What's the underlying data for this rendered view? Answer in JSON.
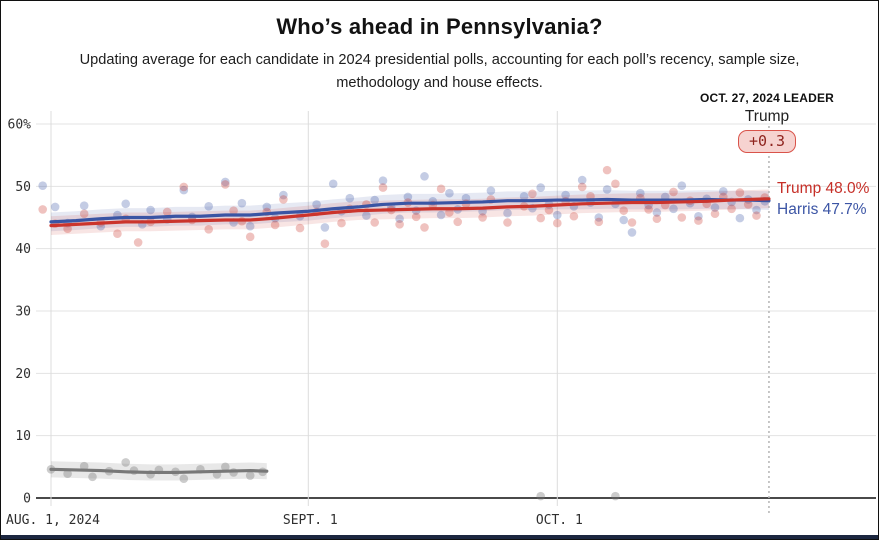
{
  "header": {
    "title": "Who’s ahead in Pennsylvania?",
    "subtitle": "Updating average for each candidate in 2024 presidential polls, accounting for each poll’s recency, sample size, methodology and house effects."
  },
  "leader": {
    "heading": "OCT. 27, 2024 LEADER",
    "name": "Trump",
    "margin": "+0.3"
  },
  "end_labels": {
    "trump": {
      "text": "Trump 48.0%"
    },
    "harris": {
      "text": "Harris 47.7%"
    }
  },
  "colors": {
    "trump": "#cb342c",
    "harris": "#3a55a4",
    "other": "#787878",
    "trump_band": "rgba(203,52,44,0.13)",
    "harris_band": "rgba(58,85,164,0.13)",
    "other_band": "rgba(120,120,120,0.17)",
    "grid": "#e3e3e3",
    "axis": "#4a4a4a",
    "marker": "#b9b9b9",
    "pill_bg": "#f6d3d0",
    "pill_border": "#d9534a",
    "pill_text": "#8f241e",
    "bottom_bar": "#1c2740"
  },
  "chart_data": {
    "type": "line",
    "title": "Who’s ahead in Pennsylvania?",
    "x_unit": "days since Aug 1, 2024",
    "ylim": [
      0,
      62
    ],
    "grid": true,
    "latest_date": "Oct. 27, 2024",
    "marker_day": 86.5,
    "x_ticks": [
      {
        "day": 0,
        "label": "AUG. 1, 2024"
      },
      {
        "day": 31,
        "label": "SEPT. 1"
      },
      {
        "day": 61,
        "label": "OCT. 1"
      }
    ],
    "y_ticks": [
      {
        "v": 0,
        "label": "0"
      },
      {
        "v": 10,
        "label": "10"
      },
      {
        "v": 20,
        "label": "20"
      },
      {
        "v": 30,
        "label": "30"
      },
      {
        "v": 40,
        "label": "40"
      },
      {
        "v": 50,
        "label": "50"
      },
      {
        "v": 60,
        "label": "60%"
      }
    ],
    "series": [
      {
        "name": "Other",
        "color_key": "other",
        "band": 1.3,
        "final_value": null,
        "days": [
          0,
          3,
          6,
          9,
          12,
          15,
          18,
          21,
          24,
          26
        ],
        "values": [
          4.6,
          4.5,
          4.4,
          4.2,
          4.1,
          4.1,
          4.2,
          4.3,
          4.4,
          4.3
        ],
        "dots": [
          [
            0,
            4.6
          ],
          [
            2,
            3.9
          ],
          [
            4,
            5.1
          ],
          [
            5,
            3.4
          ],
          [
            7,
            4.3
          ],
          [
            9,
            5.7
          ],
          [
            10,
            4.4
          ],
          [
            12,
            3.8
          ],
          [
            13,
            4.5
          ],
          [
            15,
            4.2
          ],
          [
            16,
            3.1
          ],
          [
            18,
            4.6
          ],
          [
            20,
            3.8
          ],
          [
            21,
            5.0
          ],
          [
            22,
            4.1
          ],
          [
            24,
            3.6
          ],
          [
            25.5,
            4.2
          ],
          [
            59,
            0.3
          ],
          [
            68,
            0.3
          ]
        ]
      },
      {
        "name": "Harris",
        "color_key": "harris",
        "band": 1.5,
        "final_value": 47.7,
        "days": [
          0,
          3,
          6,
          9,
          12,
          15,
          18,
          21,
          24,
          27,
          31,
          34,
          37,
          40,
          43,
          46,
          49,
          52,
          55,
          58,
          61,
          64,
          67,
          70,
          73,
          76,
          79,
          82,
          84,
          86.5
        ],
        "values": [
          44.3,
          44.5,
          44.8,
          45.0,
          45.0,
          45.2,
          45.2,
          45.4,
          45.4,
          45.7,
          46.0,
          46.4,
          46.7,
          47.1,
          47.3,
          47.3,
          47.4,
          47.5,
          47.7,
          47.7,
          47.8,
          47.8,
          47.9,
          47.8,
          47.8,
          47.8,
          47.9,
          47.8,
          47.8,
          47.7
        ],
        "dots": [
          [
            -1,
            50.1
          ],
          [
            0.5,
            46.7
          ],
          [
            2,
            44.1
          ],
          [
            4,
            46.9
          ],
          [
            6,
            43.6
          ],
          [
            8,
            45.4
          ],
          [
            9,
            47.2
          ],
          [
            11,
            43.9
          ],
          [
            12,
            46.2
          ],
          [
            14,
            44.7
          ],
          [
            16,
            49.4
          ],
          [
            17,
            45.1
          ],
          [
            19,
            46.8
          ],
          [
            21,
            50.7
          ],
          [
            22,
            44.2
          ],
          [
            23,
            47.3
          ],
          [
            24,
            43.6
          ],
          [
            26,
            46.7
          ],
          [
            27,
            44.9
          ],
          [
            28,
            48.6
          ],
          [
            30,
            45.2
          ],
          [
            32,
            47.1
          ],
          [
            33,
            43.4
          ],
          [
            34,
            50.4
          ],
          [
            35,
            46.0
          ],
          [
            36,
            48.1
          ],
          [
            38,
            45.3
          ],
          [
            39,
            47.8
          ],
          [
            40,
            50.9
          ],
          [
            41,
            46.6
          ],
          [
            42,
            44.8
          ],
          [
            43,
            48.3
          ],
          [
            44,
            46.1
          ],
          [
            45,
            51.6
          ],
          [
            46,
            47.6
          ],
          [
            47,
            45.4
          ],
          [
            48,
            48.9
          ],
          [
            49,
            46.3
          ],
          [
            50,
            48.1
          ],
          [
            52,
            46.0
          ],
          [
            53,
            49.3
          ],
          [
            55,
            45.7
          ],
          [
            57,
            48.4
          ],
          [
            58,
            46.5
          ],
          [
            59,
            49.8
          ],
          [
            60,
            47.1
          ],
          [
            61,
            45.4
          ],
          [
            62,
            48.6
          ],
          [
            63,
            46.8
          ],
          [
            64,
            51.0
          ],
          [
            65,
            47.4
          ],
          [
            66,
            45.0
          ],
          [
            67,
            49.5
          ],
          [
            68,
            47.2
          ],
          [
            69,
            44.6
          ],
          [
            70,
            42.6
          ],
          [
            71,
            48.9
          ],
          [
            72,
            47.0
          ],
          [
            73,
            45.8
          ],
          [
            74,
            48.3
          ],
          [
            75,
            46.4
          ],
          [
            76,
            50.1
          ],
          [
            77,
            47.3
          ],
          [
            78,
            45.2
          ],
          [
            79,
            48.0
          ],
          [
            80,
            46.6
          ],
          [
            81,
            49.2
          ],
          [
            82,
            47.5
          ],
          [
            83,
            44.9
          ],
          [
            84,
            47.9
          ],
          [
            85,
            46.2
          ],
          [
            86,
            47.6
          ]
        ]
      },
      {
        "name": "Trump",
        "color_key": "trump",
        "band": 1.5,
        "final_value": 48.0,
        "days": [
          0,
          3,
          6,
          9,
          12,
          15,
          18,
          21,
          24,
          27,
          31,
          34,
          37,
          40,
          43,
          46,
          49,
          52,
          55,
          58,
          61,
          64,
          67,
          70,
          73,
          76,
          79,
          82,
          84,
          86.5
        ],
        "values": [
          43.7,
          43.9,
          44.1,
          44.3,
          44.3,
          44.4,
          44.5,
          44.6,
          44.6,
          44.9,
          45.4,
          45.8,
          46.1,
          46.2,
          46.3,
          46.4,
          46.4,
          46.5,
          46.7,
          46.8,
          47.0,
          47.2,
          47.3,
          47.4,
          47.4,
          47.5,
          47.6,
          47.8,
          47.9,
          48.0
        ],
        "dots": [
          [
            -1,
            46.3
          ],
          [
            0.5,
            44.0
          ],
          [
            2,
            43.2
          ],
          [
            4,
            45.6
          ],
          [
            6,
            44.2
          ],
          [
            8,
            42.4
          ],
          [
            9,
            44.8
          ],
          [
            10.5,
            41.0
          ],
          [
            12,
            44.3
          ],
          [
            14,
            45.9
          ],
          [
            16,
            49.9
          ],
          [
            17,
            44.6
          ],
          [
            19,
            43.1
          ],
          [
            21,
            50.3
          ],
          [
            22,
            46.1
          ],
          [
            23,
            44.4
          ],
          [
            24,
            41.9
          ],
          [
            26,
            45.9
          ],
          [
            27,
            43.8
          ],
          [
            28,
            47.9
          ],
          [
            30,
            43.3
          ],
          [
            32,
            45.9
          ],
          [
            33,
            40.8
          ],
          [
            35,
            44.1
          ],
          [
            36,
            46.4
          ],
          [
            38,
            47.1
          ],
          [
            39,
            44.2
          ],
          [
            40,
            49.8
          ],
          [
            41,
            46.2
          ],
          [
            42,
            43.9
          ],
          [
            43,
            47.4
          ],
          [
            44,
            45.1
          ],
          [
            45,
            43.4
          ],
          [
            46,
            47.0
          ],
          [
            47,
            49.6
          ],
          [
            48,
            45.8
          ],
          [
            49,
            44.3
          ],
          [
            50,
            47.2
          ],
          [
            52,
            45.0
          ],
          [
            53,
            47.9
          ],
          [
            55,
            44.2
          ],
          [
            57,
            46.8
          ],
          [
            58,
            48.8
          ],
          [
            59,
            44.9
          ],
          [
            60,
            46.2
          ],
          [
            61,
            44.1
          ],
          [
            62,
            47.6
          ],
          [
            63,
            45.2
          ],
          [
            64,
            49.9
          ],
          [
            65,
            48.4
          ],
          [
            66,
            44.3
          ],
          [
            67,
            52.6
          ],
          [
            68,
            50.4
          ],
          [
            69,
            46.1
          ],
          [
            70,
            44.2
          ],
          [
            71,
            48.1
          ],
          [
            72,
            46.3
          ],
          [
            73,
            44.8
          ],
          [
            74,
            47.0
          ],
          [
            75,
            49.1
          ],
          [
            76,
            45.0
          ],
          [
            77,
            47.7
          ],
          [
            78,
            44.5
          ],
          [
            79,
            47.2
          ],
          [
            80,
            45.6
          ],
          [
            81,
            48.3
          ],
          [
            82,
            46.4
          ],
          [
            83,
            49.0
          ],
          [
            84,
            47.1
          ],
          [
            85,
            45.3
          ],
          [
            86,
            48.2
          ]
        ]
      }
    ]
  }
}
